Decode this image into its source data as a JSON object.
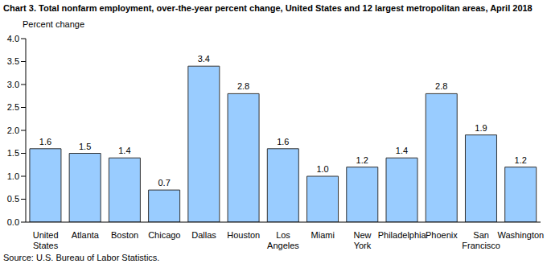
{
  "chart_data": {
    "type": "bar",
    "title": "Chart 3. Total nonfarm employment, over-the-year percent change, United States and 12 largest metropolitan areas, April 2018",
    "ylabel": "Percent change",
    "source": "Source: U.S. Bureau of Labor Statistics.",
    "categories": [
      "United States",
      "Atlanta",
      "Boston",
      "Chicago",
      "Dallas",
      "Houston",
      "Los Angeles",
      "Miami",
      "New York",
      "Philadelphia",
      "Phoenix",
      "San Francisco",
      "Washington"
    ],
    "values": [
      1.6,
      1.5,
      1.4,
      0.7,
      3.4,
      2.8,
      1.6,
      1.0,
      1.2,
      1.4,
      2.8,
      1.9,
      1.2
    ],
    "value_labels": [
      "1.6",
      "1.5",
      "1.4",
      "0.7",
      "3.4",
      "2.8",
      "1.6",
      "1.0",
      "1.2",
      "1.4",
      "2.8",
      "1.9",
      "1.2"
    ],
    "color": "#99ccff",
    "ylim": [
      0,
      4
    ],
    "yticks": [
      {
        "value": 0,
        "label": "0.0"
      },
      0.5,
      {
        "value": 1,
        "label": "1.0"
      },
      1.5,
      {
        "value": 2,
        "label": "2.0"
      },
      2.5,
      {
        "value": 3,
        "label": "3.0"
      },
      3.5,
      {
        "value": 4,
        "label": "4.0"
      }
    ],
    "grid": false,
    "data_labels": true
  }
}
